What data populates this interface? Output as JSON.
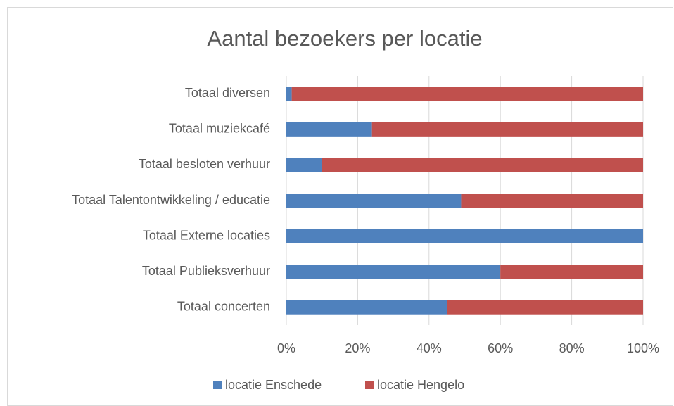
{
  "chart_data": {
    "type": "stacked_barh",
    "title": "Aantal bezoekers per locatie",
    "categories": [
      "Totaal diversen",
      "Totaal muziekcafé",
      "Totaal besloten verhuur",
      "Totaal Talentontwikkeling / educatie",
      "Totaal Externe locaties",
      "Totaal Publieksverhuur",
      "Totaal concerten"
    ],
    "series": [
      {
        "name": "locatie Enschede",
        "color": "#4f81bd",
        "values": [
          1.5,
          24,
          10,
          49,
          100,
          60,
          45
        ]
      },
      {
        "name": "locatie Hengelo",
        "color": "#c0504d",
        "values": [
          98.5,
          76,
          90,
          51,
          0,
          40,
          55
        ]
      }
    ],
    "xlim": [
      0,
      100
    ],
    "xticks": [
      {
        "value": 0,
        "label": "0%"
      },
      {
        "value": 20,
        "label": "20%"
      },
      {
        "value": 40,
        "label": "40%"
      },
      {
        "value": 60,
        "label": "60%"
      },
      {
        "value": 80,
        "label": "80%"
      },
      {
        "value": 100,
        "label": "100%"
      }
    ],
    "grid": true,
    "legend": "bottom"
  }
}
